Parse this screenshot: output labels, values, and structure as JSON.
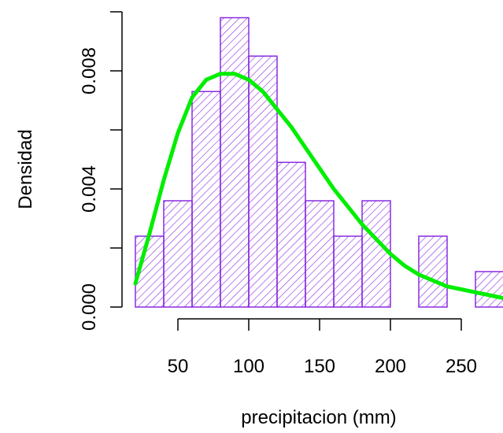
{
  "chart_data": {
    "type": "bar",
    "subtype": "histogram-with-density-curve",
    "title": "",
    "xlabel": "precipitacion (mm)",
    "ylabel": "Densidad",
    "xlim": [
      20,
      280
    ],
    "ylim": [
      0,
      0.01
    ],
    "x_ticks": [
      50,
      100,
      150,
      200,
      250
    ],
    "x_tick_labels": [
      "50",
      "100",
      "150",
      "200",
      "250"
    ],
    "y_ticks": [
      0,
      0.002,
      0.004,
      0.006,
      0.008,
      0.01
    ],
    "y_tick_labels": [
      "0.000",
      "",
      "0.004",
      "",
      "0.008",
      ""
    ],
    "bin_edges": [
      20,
      40,
      60,
      80,
      100,
      120,
      140,
      160,
      180,
      200,
      220,
      240,
      260,
      280
    ],
    "bins": [
      {
        "from": 20,
        "to": 40,
        "density": 0.0024
      },
      {
        "from": 40,
        "to": 60,
        "density": 0.0036
      },
      {
        "from": 60,
        "to": 80,
        "density": 0.0073
      },
      {
        "from": 80,
        "to": 100,
        "density": 0.0098
      },
      {
        "from": 100,
        "to": 120,
        "density": 0.0085
      },
      {
        "from": 120,
        "to": 140,
        "density": 0.0049
      },
      {
        "from": 140,
        "to": 160,
        "density": 0.0036
      },
      {
        "from": 160,
        "to": 180,
        "density": 0.0024
      },
      {
        "from": 180,
        "to": 200,
        "density": 0.0036
      },
      {
        "from": 200,
        "to": 220,
        "density": 0.0
      },
      {
        "from": 220,
        "to": 240,
        "density": 0.0024
      },
      {
        "from": 240,
        "to": 260,
        "density": 0.0
      },
      {
        "from": 260,
        "to": 280,
        "density": 0.0012
      }
    ],
    "curve": {
      "x": [
        20,
        30,
        40,
        50,
        60,
        70,
        80,
        90,
        100,
        110,
        120,
        130,
        140,
        150,
        160,
        170,
        180,
        190,
        200,
        210,
        220,
        230,
        240,
        250,
        260,
        270,
        280
      ],
      "y": [
        0.0008,
        0.0025,
        0.0043,
        0.0059,
        0.0071,
        0.0077,
        0.0079,
        0.0079,
        0.0077,
        0.0073,
        0.0067,
        0.0061,
        0.0054,
        0.0047,
        0.004,
        0.0034,
        0.0028,
        0.0023,
        0.0018,
        0.0014,
        0.0011,
        0.0009,
        0.0007,
        0.0006,
        0.0005,
        0.0004,
        0.0003
      ]
    },
    "colors": {
      "bar_border": "#8a2be2",
      "bar_hatch": "#8a2be2",
      "curve": "#00ee00",
      "axis": "#000000"
    },
    "grid": false,
    "legend": "none"
  }
}
